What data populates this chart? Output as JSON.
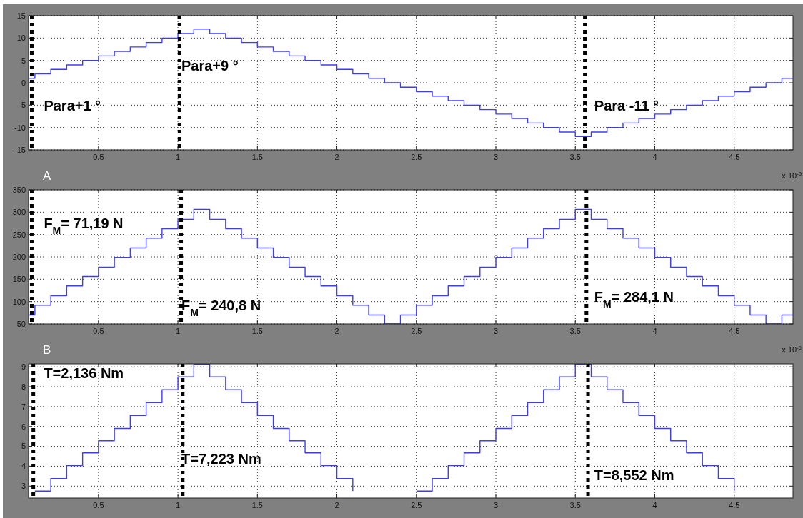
{
  "chart_data": [
    {
      "type": "step",
      "x": [
        0.06,
        0.1,
        0.2,
        0.3,
        0.4,
        0.5,
        0.6,
        0.7,
        0.8,
        0.9,
        1.0,
        1.1,
        1.2,
        1.3,
        1.4,
        1.5,
        1.6,
        1.7,
        1.8,
        1.9,
        2.0,
        2.1,
        2.2,
        2.3,
        2.4,
        2.5,
        2.6,
        2.7,
        2.8,
        2.9,
        3.0,
        3.1,
        3.2,
        3.3,
        3.4,
        3.5,
        3.6,
        3.7,
        3.8,
        3.9,
        4.0,
        4.1,
        4.2,
        4.3,
        4.4,
        4.5,
        4.6,
        4.7,
        4.8,
        4.87
      ],
      "series": [
        {
          "color": "#3c3cff",
          "values": [
            1,
            2,
            3,
            4,
            5,
            6,
            7,
            8,
            9,
            10,
            11,
            12,
            11,
            10,
            9,
            8,
            7,
            6,
            5,
            4,
            3,
            2,
            1,
            0,
            -1,
            -2,
            -3,
            -4,
            -5,
            -6,
            -7,
            -8,
            -9,
            -10,
            -11,
            -12,
            -11,
            -10,
            -9,
            -8,
            -7,
            -6,
            -5,
            -4,
            -3,
            -2,
            -1,
            0,
            1,
            1
          ]
        }
      ],
      "xlim": [
        0.06,
        4.87
      ],
      "xticks": [
        0.5,
        1,
        1.5,
        2,
        2.5,
        3,
        3.5,
        4,
        4.5
      ],
      "ylim": [
        -15,
        15
      ],
      "yticks": [
        -15,
        -10,
        -5,
        0,
        5,
        10,
        15
      ],
      "grid": true,
      "ref_lines": [
        {
          "axis": "x",
          "value": 0.08,
          "color": "#000000",
          "line_style": "dotted"
        },
        {
          "axis": "x",
          "value": 1.01,
          "color": "#000000",
          "line_style": "dotted"
        },
        {
          "axis": "x",
          "value": 3.56,
          "color": "#000000",
          "line_style": "dotted"
        }
      ],
      "annotations": [
        "Para+1 °",
        "Para+9 °",
        "Para -11 °",
        "x 10$^{-5}$"
      ]
    },
    {
      "type": "step",
      "title": "A",
      "x": [
        0.06,
        0.1,
        0.2,
        0.3,
        0.4,
        0.5,
        0.6,
        0.7,
        0.8,
        0.9,
        1.0,
        1.1,
        1.2,
        1.3,
        1.4,
        1.5,
        1.6,
        1.7,
        1.8,
        1.9,
        2.0,
        2.1,
        2.2,
        2.3,
        2.4,
        2.5,
        2.6,
        2.7,
        2.8,
        2.9,
        3.0,
        3.1,
        3.2,
        3.3,
        3.4,
        3.5,
        3.6,
        3.7,
        3.8,
        3.9,
        4.0,
        4.1,
        4.2,
        4.3,
        4.4,
        4.5,
        4.6,
        4.7,
        4.8,
        4.87
      ],
      "series": [
        {
          "color": "#3c3cff",
          "values": [
            70,
            92,
            113,
            135,
            156,
            177,
            199,
            220,
            242,
            263,
            284,
            306,
            284,
            263,
            242,
            220,
            199,
            177,
            156,
            135,
            113,
            92,
            70,
            50,
            70,
            92,
            113,
            135,
            156,
            177,
            199,
            220,
            242,
            263,
            284,
            306,
            284,
            263,
            242,
            220,
            199,
            177,
            156,
            135,
            113,
            92,
            70,
            50,
            70,
            70
          ]
        }
      ],
      "xlim": [
        0.06,
        4.87
      ],
      "xticks": [
        0.5,
        1,
        1.5,
        2,
        2.5,
        3,
        3.5,
        4,
        4.5
      ],
      "ylim": [
        50,
        350
      ],
      "yticks": [
        50,
        100,
        150,
        200,
        250,
        300,
        350
      ],
      "grid": true,
      "ref_lines": [
        {
          "axis": "x",
          "value": 0.08,
          "color": "#000000",
          "line_style": "dotted"
        },
        {
          "axis": "x",
          "value": 1.02,
          "color": "#000000",
          "line_style": "dotted"
        },
        {
          "axis": "x",
          "value": 3.57,
          "color": "#000000",
          "line_style": "dotted"
        }
      ],
      "annotations": [
        "F$_{M}$= 71,19 N",
        "F$_{M}$= 240,8 N",
        "F$_{M}$= 284,1 N",
        "x 10$^{-5}$"
      ]
    },
    {
      "type": "step",
      "title": "B",
      "series": [
        {
          "color": "#3c3cff",
          "x": [
            0.1,
            0.2,
            0.3,
            0.4,
            0.5,
            0.6,
            0.7,
            0.8,
            0.9,
            1.0,
            1.1,
            1.2,
            1.3,
            1.4,
            1.5,
            1.6,
            1.7,
            1.8,
            1.9,
            2.0,
            2.1
          ],
          "values": [
            2.75,
            3.38,
            4.03,
            4.67,
            5.28,
            5.9,
            6.55,
            7.2,
            7.85,
            8.5,
            9.14,
            8.5,
            7.85,
            7.2,
            6.55,
            5.9,
            5.28,
            4.67,
            4.03,
            3.38,
            2.75
          ]
        },
        {
          "color": "#3c3cff",
          "x": [
            2.5,
            2.6,
            2.7,
            2.8,
            2.9,
            3.0,
            3.1,
            3.2,
            3.3,
            3.4,
            3.5,
            3.6,
            3.7,
            3.8,
            3.9,
            4.0,
            4.1,
            4.2,
            4.3,
            4.4,
            4.5
          ],
          "values": [
            2.75,
            3.38,
            4.03,
            4.67,
            5.28,
            5.9,
            6.55,
            7.2,
            7.85,
            8.5,
            9.14,
            8.5,
            7.85,
            7.2,
            6.55,
            5.9,
            5.28,
            4.67,
            4.03,
            3.38,
            2.75
          ]
        }
      ],
      "xlim": [
        0.06,
        4.87
      ],
      "xticks": [
        0.5,
        1,
        1.5,
        2,
        2.5,
        3,
        3.5,
        4,
        4.5
      ],
      "ylim": [
        2.4,
        9.15
      ],
      "yticks": [
        3,
        4,
        5,
        6,
        7,
        8,
        9
      ],
      "grid": true,
      "ref_lines": [
        {
          "axis": "x",
          "value": 0.09,
          "color": "#000000",
          "line_style": "dotted"
        },
        {
          "axis": "x",
          "value": 1.03,
          "color": "#000000",
          "line_style": "dotted"
        },
        {
          "axis": "x",
          "value": 3.58,
          "color": "#000000",
          "line_style": "dotted"
        }
      ],
      "annotations": [
        "T=2,136 Nm",
        "T=7,223 Nm",
        "T=8,552 Nm"
      ]
    }
  ]
}
